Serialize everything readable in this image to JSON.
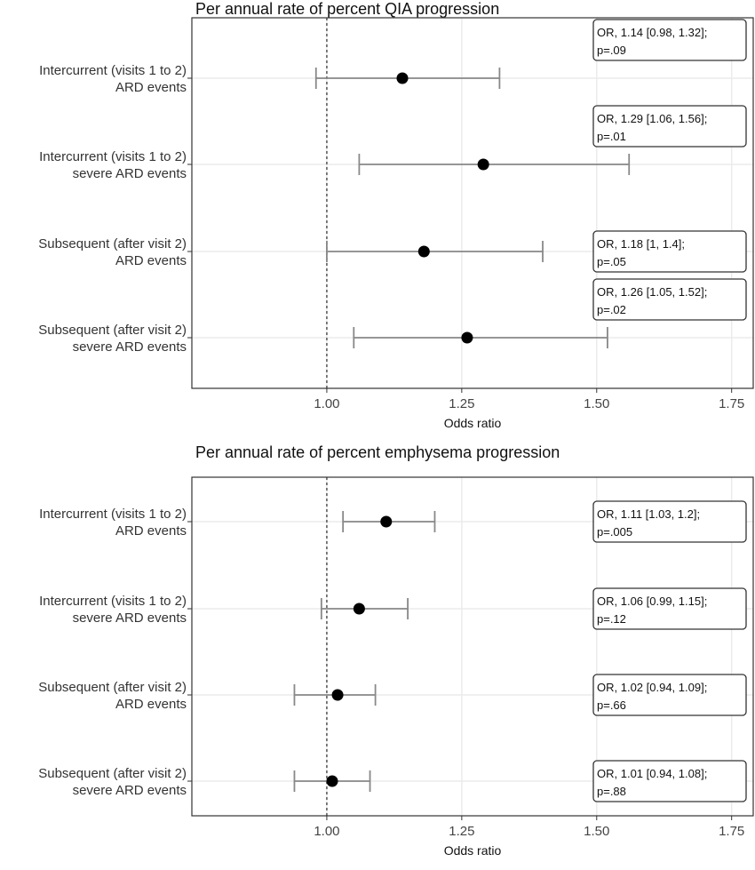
{
  "chart_data": [
    {
      "type": "forest",
      "title": "Per annual rate of percent QIA progression",
      "xlabel": "Odds ratio",
      "xlim": [
        0.75,
        1.79
      ],
      "xticks": [
        1.0,
        1.25,
        1.5,
        1.75
      ],
      "xtick_labels": [
        "1.00",
        "1.25",
        "1.50",
        "1.75"
      ],
      "reference_line": 1.0,
      "grid": true,
      "rows": [
        {
          "label": [
            "Intercurrent (visits 1 to 2)",
            "ARD events"
          ],
          "or": 1.14,
          "lo": 0.98,
          "hi": 1.32,
          "annot": [
            "OR, 1.14 [0.98, 1.32];",
            "p=.09"
          ],
          "annot_pos": "above"
        },
        {
          "label": [
            "Intercurrent (visits 1 to 2)",
            "severe ARD events"
          ],
          "or": 1.29,
          "lo": 1.06,
          "hi": 1.56,
          "annot": [
            "OR, 1.29 [1.06, 1.56];",
            "p=.01"
          ],
          "annot_pos": "above"
        },
        {
          "label": [
            "Subsequent (after visit 2)",
            "ARD events"
          ],
          "or": 1.18,
          "lo": 1.0,
          "hi": 1.4,
          "annot": [
            "OR, 1.18 [1, 1.4];",
            "p=.05"
          ],
          "annot_pos": "center"
        },
        {
          "label": [
            "Subsequent (after visit 2)",
            "severe ARD events"
          ],
          "or": 1.26,
          "lo": 1.05,
          "hi": 1.52,
          "annot": [
            "OR, 1.26 [1.05, 1.52];",
            "p=.02"
          ],
          "annot_pos": "above"
        }
      ]
    },
    {
      "type": "forest",
      "title": "Per annual rate of percent emphysema progression",
      "xlabel": "Odds ratio",
      "xlim": [
        0.75,
        1.79
      ],
      "xticks": [
        1.0,
        1.25,
        1.5,
        1.75
      ],
      "xtick_labels": [
        "1.00",
        "1.25",
        "1.50",
        "1.75"
      ],
      "reference_line": 1.0,
      "grid": true,
      "rows": [
        {
          "label": [
            "Intercurrent (visits 1 to 2)",
            "ARD events"
          ],
          "or": 1.11,
          "lo": 1.03,
          "hi": 1.2,
          "annot": [
            "OR, 1.11 [1.03, 1.2];",
            "p=.005"
          ],
          "annot_pos": "center"
        },
        {
          "label": [
            "Intercurrent (visits 1 to 2)",
            "severe ARD events"
          ],
          "or": 1.06,
          "lo": 0.99,
          "hi": 1.15,
          "annot": [
            "OR, 1.06 [0.99, 1.15];",
            "p=.12"
          ],
          "annot_pos": "center"
        },
        {
          "label": [
            "Subsequent (after visit 2)",
            "ARD events"
          ],
          "or": 1.02,
          "lo": 0.94,
          "hi": 1.09,
          "annot": [
            "OR, 1.02 [0.94, 1.09];",
            "p=.66"
          ],
          "annot_pos": "center"
        },
        {
          "label": [
            "Subsequent (after visit 2)",
            "severe ARD events"
          ],
          "or": 1.01,
          "lo": 0.94,
          "hi": 1.08,
          "annot": [
            "OR, 1.01 [0.94, 1.08];",
            "p=.88"
          ],
          "annot_pos": "center"
        }
      ]
    }
  ],
  "colors": {
    "point": "#000000",
    "errorbar": "#888888",
    "grid": "#ebebeb",
    "frame": "#333333"
  }
}
